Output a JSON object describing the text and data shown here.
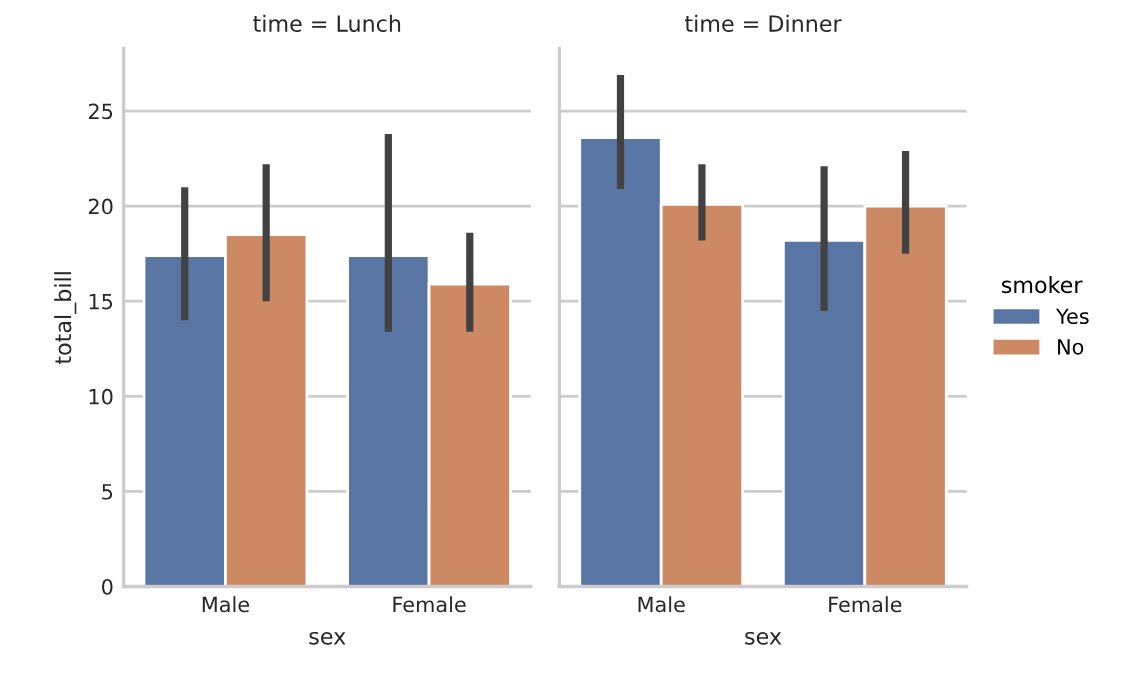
{
  "chart_data": [
    {
      "type": "bar",
      "title": "time = Lunch",
      "xlabel": "sex",
      "ylabel": "total_bill",
      "categories": [
        "Male",
        "Female"
      ],
      "ylim": [
        0,
        28.3
      ],
      "yticks": [
        0,
        5,
        10,
        15,
        20,
        25
      ],
      "grid": "y",
      "legend": false,
      "series": [
        {
          "color": "#5975a4",
          "values": [
            17.4,
            17.4
          ],
          "errors": [
            [
              14.0,
              21.0
            ],
            [
              13.4,
              23.8
            ]
          ]
        },
        {
          "color": "#cc8963",
          "values": [
            18.5,
            15.9
          ],
          "errors": [
            [
              15.0,
              22.2
            ],
            [
              13.4,
              18.6
            ]
          ]
        }
      ]
    },
    {
      "type": "bar",
      "title": "time = Dinner",
      "xlabel": "sex",
      "legend_title": "smoker",
      "categories": [
        "Male",
        "Female"
      ],
      "ylim": [
        0,
        28.3
      ],
      "yticks": [
        0,
        5,
        10,
        15,
        20,
        25
      ],
      "grid": "y",
      "legend": "right",
      "tick_labels": "x",
      "series": [
        {
          "name": "Yes",
          "color": "#5975a4",
          "values": [
            23.6,
            18.2
          ],
          "errors": [
            [
              20.9,
              26.9
            ],
            [
              14.5,
              22.1
            ]
          ]
        },
        {
          "name": "No",
          "color": "#cc8963",
          "values": [
            20.1,
            20.0
          ],
          "errors": [
            [
              18.2,
              22.2
            ],
            [
              17.5,
              22.9
            ]
          ]
        }
      ]
    }
  ]
}
